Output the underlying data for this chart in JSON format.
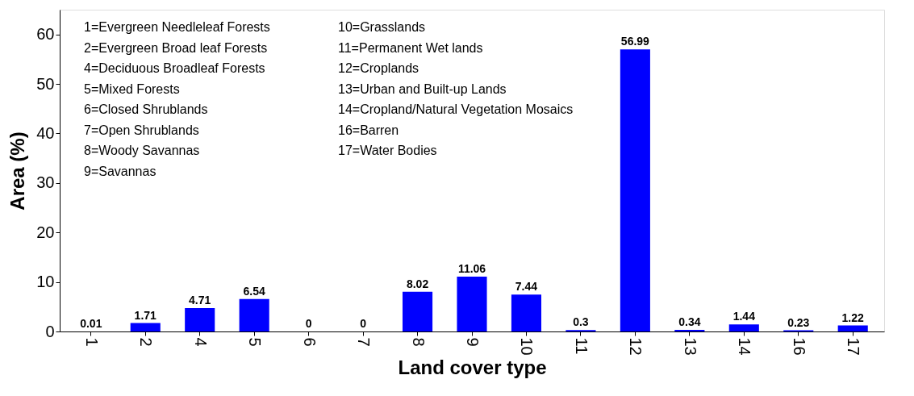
{
  "chart_data": {
    "type": "bar",
    "xlabel": "Land cover type",
    "ylabel": "Area (%)",
    "categories": [
      "1",
      "2",
      "4",
      "5",
      "6",
      "7",
      "8",
      "9",
      "10",
      "11",
      "12",
      "13",
      "14",
      "16",
      "17"
    ],
    "values": [
      0.01,
      1.71,
      4.71,
      6.54,
      0,
      0,
      8.02,
      11.06,
      7.44,
      0.3,
      56.99,
      0.34,
      1.44,
      0.23,
      1.22
    ],
    "color": "#0000ff",
    "ylim": [
      0,
      65
    ],
    "yticks": [
      0,
      10,
      20,
      30,
      40,
      50,
      60
    ],
    "data_labels": true,
    "grid": false,
    "annotations": [
      "1=Evergreen Needleleaf Forests",
      "2=Evergreen Broad leaf Forests",
      "4=Deciduous Broadleaf Forests",
      "5=Mixed Forests",
      "6=Closed Shrublands",
      "7=Open Shrublands",
      "8=Woody Savannas",
      "9=Savannas",
      "10=Grasslands",
      "11=Permanent Wet lands",
      "12=Croplands",
      "13=Urban and Built-up Lands",
      "14=Cropland/Natural Vegetation Mosaics",
      "16=Barren",
      "17=Water Bodies"
    ]
  }
}
